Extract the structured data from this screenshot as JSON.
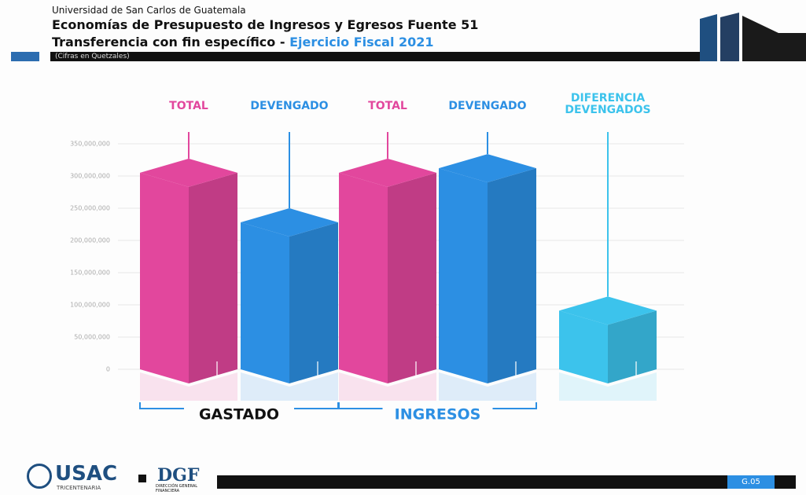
{
  "header": {
    "institution": "Universidad de San Carlos de Guatemala",
    "title": "Economías de Presupuesto de Ingresos y Egresos Fuente 51",
    "subtitle": "Transferencia con fin específico - ",
    "subtitle_highlight": "Ejercicio Fiscal 2021",
    "note": "(Cifras en Quetzales)"
  },
  "chart_data": {
    "type": "bar3d",
    "categories": [
      "TOTAL",
      "DEVENGADO",
      "TOTAL",
      "DEVENGADO",
      "DIFERENCIA DEVENGADOS"
    ],
    "values": [
      305000000,
      228000000,
      305000000,
      312000000,
      91000000
    ],
    "colors": [
      "#e2479d",
      "#2c8fe3",
      "#e2479d",
      "#2c8fe3",
      "#3cc3ec"
    ],
    "groups": [
      "GASTADO",
      "INGRESOS"
    ],
    "group_colors": [
      "#111111",
      "#2c8fe3"
    ],
    "ylim": [
      0,
      350000000
    ],
    "yticks": [
      0,
      {
        "value": 50000000,
        "label": "50,000,000"
      },
      {
        "value": 100000000,
        "label": "100,000,000"
      },
      {
        "value": 150000000,
        "label": "150,000,000"
      },
      {
        "value": 200000000,
        "label": "200,000,000"
      },
      {
        "value": 250000000,
        "label": "250,000,000"
      },
      {
        "value": 300000000,
        "label": "300,000,000"
      },
      {
        "value": 350000000,
        "label": "350,000,000"
      }
    ],
    "grid": true
  },
  "footer": {
    "logo": "USAC",
    "logo_sub": "TRICENTENARIA",
    "dgf": "DGF",
    "dgf_sub": "DIRECCIÓN GENERAL FINANCIERA",
    "page": "G.05"
  }
}
